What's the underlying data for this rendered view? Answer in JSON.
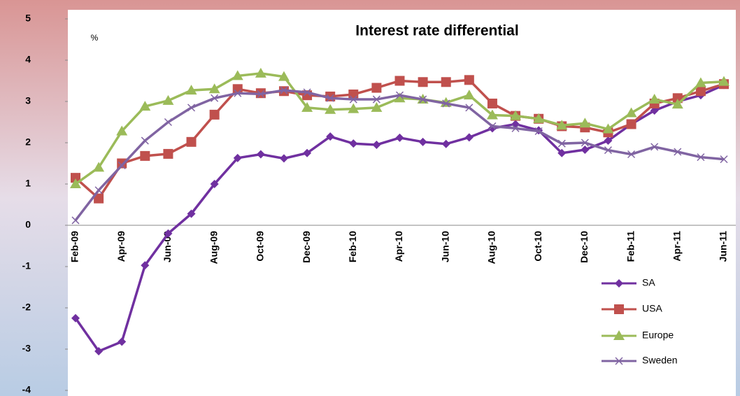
{
  "chart_data": {
    "type": "line",
    "title": "Interest rate differential",
    "y_unit": "%",
    "categories": [
      "Feb-09",
      null,
      "Apr-09",
      null,
      "Jun-09",
      null,
      "Aug-09",
      null,
      "Oct-09",
      null,
      "Dec-09",
      null,
      "Feb-10",
      null,
      "Apr-10",
      null,
      "Jun-10",
      null,
      "Aug-10",
      null,
      "Oct-10",
      null,
      "Dec-10",
      null,
      "Feb-11",
      null,
      "Apr-11",
      null,
      "Jun-11"
    ],
    "ylim": [
      -4,
      5
    ],
    "yticks": [
      -4,
      -3,
      -2,
      -1,
      0,
      1,
      2,
      3,
      4,
      5
    ],
    "legend": "right",
    "series": [
      {
        "name": "SA",
        "color": "#7030a0",
        "marker": "diamond",
        "values": [
          -2.25,
          -3.05,
          -2.82,
          -0.97,
          -0.2,
          0.28,
          1.0,
          1.63,
          1.72,
          1.62,
          1.75,
          2.15,
          1.98,
          1.95,
          2.12,
          2.02,
          1.97,
          2.13,
          2.35,
          2.45,
          2.3,
          1.75,
          1.83,
          2.05,
          2.45,
          2.78,
          3.0,
          3.15,
          3.4
        ]
      },
      {
        "name": "USA",
        "color": "#c0504d",
        "marker": "square",
        "values": [
          1.15,
          0.65,
          1.5,
          1.68,
          1.73,
          2.02,
          2.68,
          3.3,
          3.2,
          3.25,
          3.15,
          3.12,
          3.17,
          3.33,
          3.5,
          3.47,
          3.47,
          3.52,
          2.95,
          2.65,
          2.58,
          2.4,
          2.37,
          2.25,
          2.45,
          2.95,
          3.08,
          3.25,
          3.42
        ]
      },
      {
        "name": "Europe",
        "color": "#9bbb59",
        "marker": "triangle",
        "values": [
          1.0,
          1.4,
          2.28,
          2.88,
          3.02,
          3.27,
          3.3,
          3.62,
          3.68,
          3.6,
          2.85,
          2.8,
          2.82,
          2.85,
          3.08,
          3.05,
          2.97,
          3.15,
          2.67,
          2.65,
          2.58,
          2.42,
          2.47,
          2.33,
          2.72,
          3.05,
          2.93,
          3.45,
          3.48
        ]
      },
      {
        "name": "Sweden",
        "color": "#8064a2",
        "marker": "x",
        "values": [
          0.12,
          0.85,
          1.45,
          2.05,
          2.5,
          2.85,
          3.08,
          3.2,
          3.18,
          3.27,
          3.22,
          3.08,
          3.05,
          3.05,
          3.15,
          3.05,
          2.95,
          2.85,
          2.4,
          2.35,
          2.28,
          1.98,
          2.0,
          1.82,
          1.72,
          1.9,
          1.78,
          1.65,
          1.6
        ]
      }
    ]
  }
}
